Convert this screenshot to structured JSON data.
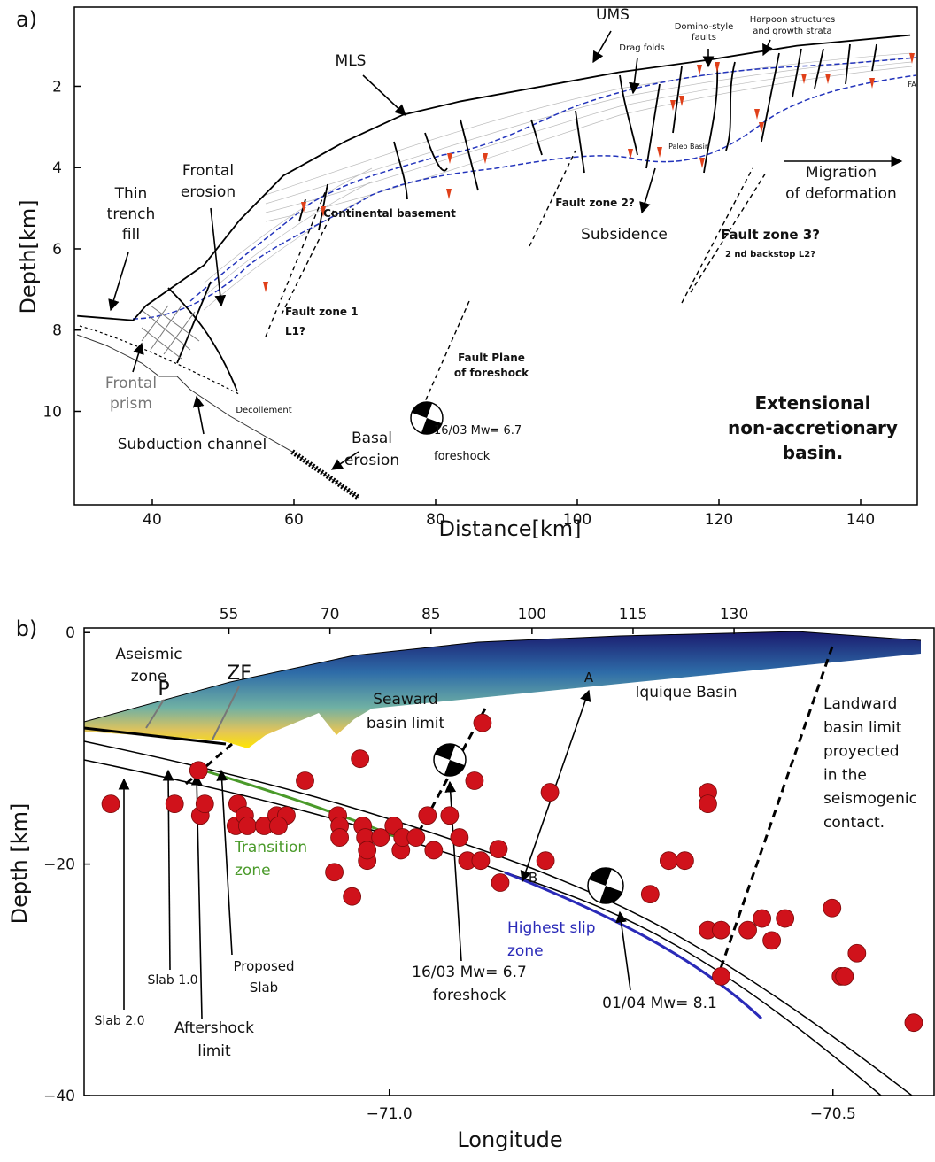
{
  "chart_data": [
    {
      "type": "profile",
      "panel_label": "a)",
      "x_label": "Distance[km]",
      "y_label": "Depth[km]",
      "xlim": [
        29,
        148
      ],
      "ylim": [
        12.3,
        0.05
      ],
      "xticks": [
        40,
        60,
        80,
        100,
        120,
        140
      ],
      "yticks": [
        2,
        4,
        6,
        8,
        10
      ],
      "x": [
        29.4,
        37.3,
        39.1,
        47.3,
        52.3,
        58.5,
        67.3,
        75.4,
        83.5,
        93.5,
        106,
        118.5,
        131,
        147
      ],
      "values": [
        7.65,
        7.76,
        7.4,
        6.4,
        5.3,
        4.2,
        3.35,
        2.7,
        2.37,
        2.05,
        1.65,
        1.35,
        1.0,
        0.74
      ],
      "color": "#000000",
      "annotations": [
        {
          "lines": [
            "UMS"
          ]
        },
        {
          "lines": [
            "MLS"
          ]
        },
        {
          "lines": [
            "Drag folds"
          ]
        },
        {
          "lines": [
            "Domino-style",
            "faults"
          ]
        },
        {
          "lines": [
            "Harpoon structures",
            "and growth strata"
          ]
        },
        {
          "lines": [
            "FA"
          ]
        },
        {
          "lines": [
            "Paleo Basin"
          ]
        },
        {
          "lines": [
            "Frontal",
            "erosion"
          ]
        },
        {
          "lines": [
            "Thin",
            "trench",
            "fill"
          ]
        },
        {
          "lines": [
            "Continental basement"
          ],
          "bold": true
        },
        {
          "lines": [
            "Fault zone 2?"
          ],
          "bold": true
        },
        {
          "lines": [
            "Subsidence"
          ]
        },
        {
          "lines": [
            "Migration",
            "of deformation"
          ]
        },
        {
          "lines": [
            "Fault zone 3?"
          ],
          "bold": true
        },
        {
          "lines": [
            "2 nd backstop L2?"
          ],
          "bold": true
        },
        {
          "lines": [
            "Fault zone 1",
            "L1?"
          ],
          "bold": true
        },
        {
          "lines": [
            "Fault Plane",
            "of foreshock"
          ],
          "bold": true
        },
        {
          "lines": [
            "Frontal",
            "prism"
          ],
          "color": "#777777"
        },
        {
          "lines": [
            "Decollement"
          ]
        },
        {
          "lines": [
            "Subduction channel"
          ]
        },
        {
          "lines": [
            "Basal",
            "erosion"
          ]
        },
        {
          "lines": [
            "16/03 Mw= 6.7",
            "foreshock"
          ]
        },
        {
          "lines": [
            "Extensional",
            "non-accretionary",
            "basin."
          ],
          "bold": true
        }
      ]
    },
    {
      "type": "scatter",
      "panel_label": "b)",
      "x_label": "Longitude",
      "y_label": "Depth [km]",
      "xlim": [
        -71.344,
        -70.386
      ],
      "ylim": [
        -40,
        0.4
      ],
      "xticks": [
        {
          "value": -71,
          "label": "−71.0"
        },
        {
          "value": -70.5,
          "label": "−70.5"
        }
      ],
      "yticks": [
        0,
        {
          "value": -20,
          "label": "−20"
        },
        {
          "value": -40,
          "label": "−40"
        }
      ],
      "x2lim": [
        33.5,
        159.7
      ],
      "x2ticks": [
        55,
        70,
        85,
        100,
        115,
        130
      ],
      "x": [
        -71.314,
        -71.242,
        -71.215,
        -71.213,
        -71.208,
        -71.171,
        -71.173,
        -71.163,
        -71.16,
        -71.141,
        -71.127,
        -71.116,
        -71.125,
        -71.095,
        -71.033,
        -71.058,
        -71.056,
        -71.056,
        -71.03,
        -71.027,
        -71.062,
        -71.042,
        -71.025,
        -71.025,
        -71.01,
        -70.995,
        -70.987,
        -70.985,
        -70.97,
        -70.95,
        -70.957,
        -70.932,
        -70.921,
        -70.912,
        -70.897,
        -70.904,
        -70.895,
        -70.877,
        -70.875,
        -70.819,
        -70.824,
        -70.706,
        -70.685,
        -70.667,
        -70.641,
        -70.641,
        -70.641,
        -70.626,
        -70.626,
        -70.596,
        -70.58,
        -70.569,
        -70.554,
        -70.501,
        -70.491,
        -70.487,
        -70.473,
        -70.409
      ],
      "values": [
        -14.8,
        -14.8,
        -11.9,
        -15.8,
        -14.8,
        -14.8,
        -16.7,
        -15.8,
        -16.7,
        -16.7,
        -15.8,
        -15.8,
        -16.7,
        -12.8,
        -10.9,
        -15.8,
        -16.7,
        -17.7,
        -16.7,
        -17.7,
        -20.7,
        -22.8,
        -19.7,
        -18.8,
        -17.7,
        -16.7,
        -18.8,
        -17.7,
        -17.7,
        -18.8,
        -15.8,
        -15.8,
        -17.7,
        -19.7,
        -19.7,
        -12.8,
        -7.8,
        -18.7,
        -21.6,
        -13.8,
        -19.7,
        -22.6,
        -19.7,
        -19.7,
        -13.8,
        -14.8,
        -25.7,
        -25.7,
        -29.7,
        -25.7,
        -24.7,
        -26.6,
        -24.7,
        -23.8,
        -29.7,
        -29.7,
        -27.7,
        -33.7
      ],
      "color": "#d0121b",
      "annotations": [
        {
          "lines": [
            "Aseismic",
            "zone"
          ]
        },
        {
          "lines": [
            "P"
          ]
        },
        {
          "lines": [
            "ZF"
          ]
        },
        {
          "lines": [
            "Seaward",
            "basin limit"
          ]
        },
        {
          "lines": [
            "A"
          ]
        },
        {
          "lines": [
            "Iquique Basin"
          ]
        },
        {
          "lines": [
            "Landward",
            "basin limit",
            "proyected",
            "in the",
            "seismogenic",
            "contact."
          ]
        },
        {
          "lines": [
            "Transition",
            "zone"
          ],
          "color": "#4a9a2a"
        },
        {
          "lines": [
            "B"
          ]
        },
        {
          "lines": [
            "Highest slip",
            "zone"
          ],
          "color": "#2a2ab8"
        },
        {
          "lines": [
            "Slab 2.0"
          ]
        },
        {
          "lines": [
            "Slab 1.0"
          ]
        },
        {
          "lines": [
            "Aftershock",
            "limit"
          ]
        },
        {
          "lines": [
            "Proposed",
            "Slab"
          ]
        },
        {
          "lines": [
            "16/03 Mw= 6.7",
            "foreshock"
          ]
        },
        {
          "lines": [
            "01/04 Mw= 8.1"
          ]
        }
      ]
    }
  ]
}
